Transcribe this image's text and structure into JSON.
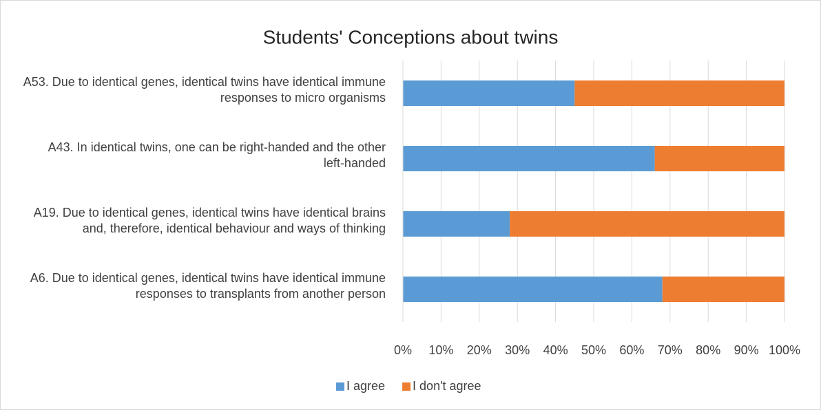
{
  "chart_data": {
    "type": "stacked_bar_horizontal",
    "title": "Students' Conceptions about twins",
    "categories": [
      "A53. Due to identical genes, identical twins have identical immune responses to micro organisms",
      "A43. In identical twins, one can be right-handed and the other left-handed",
      "A19. Due to identical genes, identical twins have identical brains and, therefore, identical behaviour and ways of thinking",
      "A6. Due to identical genes, identical twins have identical immune responses to transplants from another person"
    ],
    "series": [
      {
        "name": "I agree",
        "color": "#5b9bd5",
        "values": [
          45,
          66,
          28,
          68
        ]
      },
      {
        "name": "I don't agree",
        "color": "#ed7d31",
        "values": [
          55,
          34,
          72,
          32
        ]
      }
    ],
    "xlim": [
      0,
      100
    ],
    "xticks": [
      {
        "value": 0,
        "label": "0%"
      },
      {
        "value": 10,
        "label": "10%"
      },
      {
        "value": 20,
        "label": "20%"
      },
      {
        "value": 30,
        "label": "30%"
      },
      {
        "value": 40,
        "label": "40%"
      },
      {
        "value": 50,
        "label": "50%"
      },
      {
        "value": 60,
        "label": "60%"
      },
      {
        "value": 70,
        "label": "70%"
      },
      {
        "value": 80,
        "label": "80%"
      },
      {
        "value": 90,
        "label": "90%"
      },
      {
        "value": 100,
        "label": "100%"
      }
    ],
    "grid": true,
    "legend": "bottom"
  }
}
